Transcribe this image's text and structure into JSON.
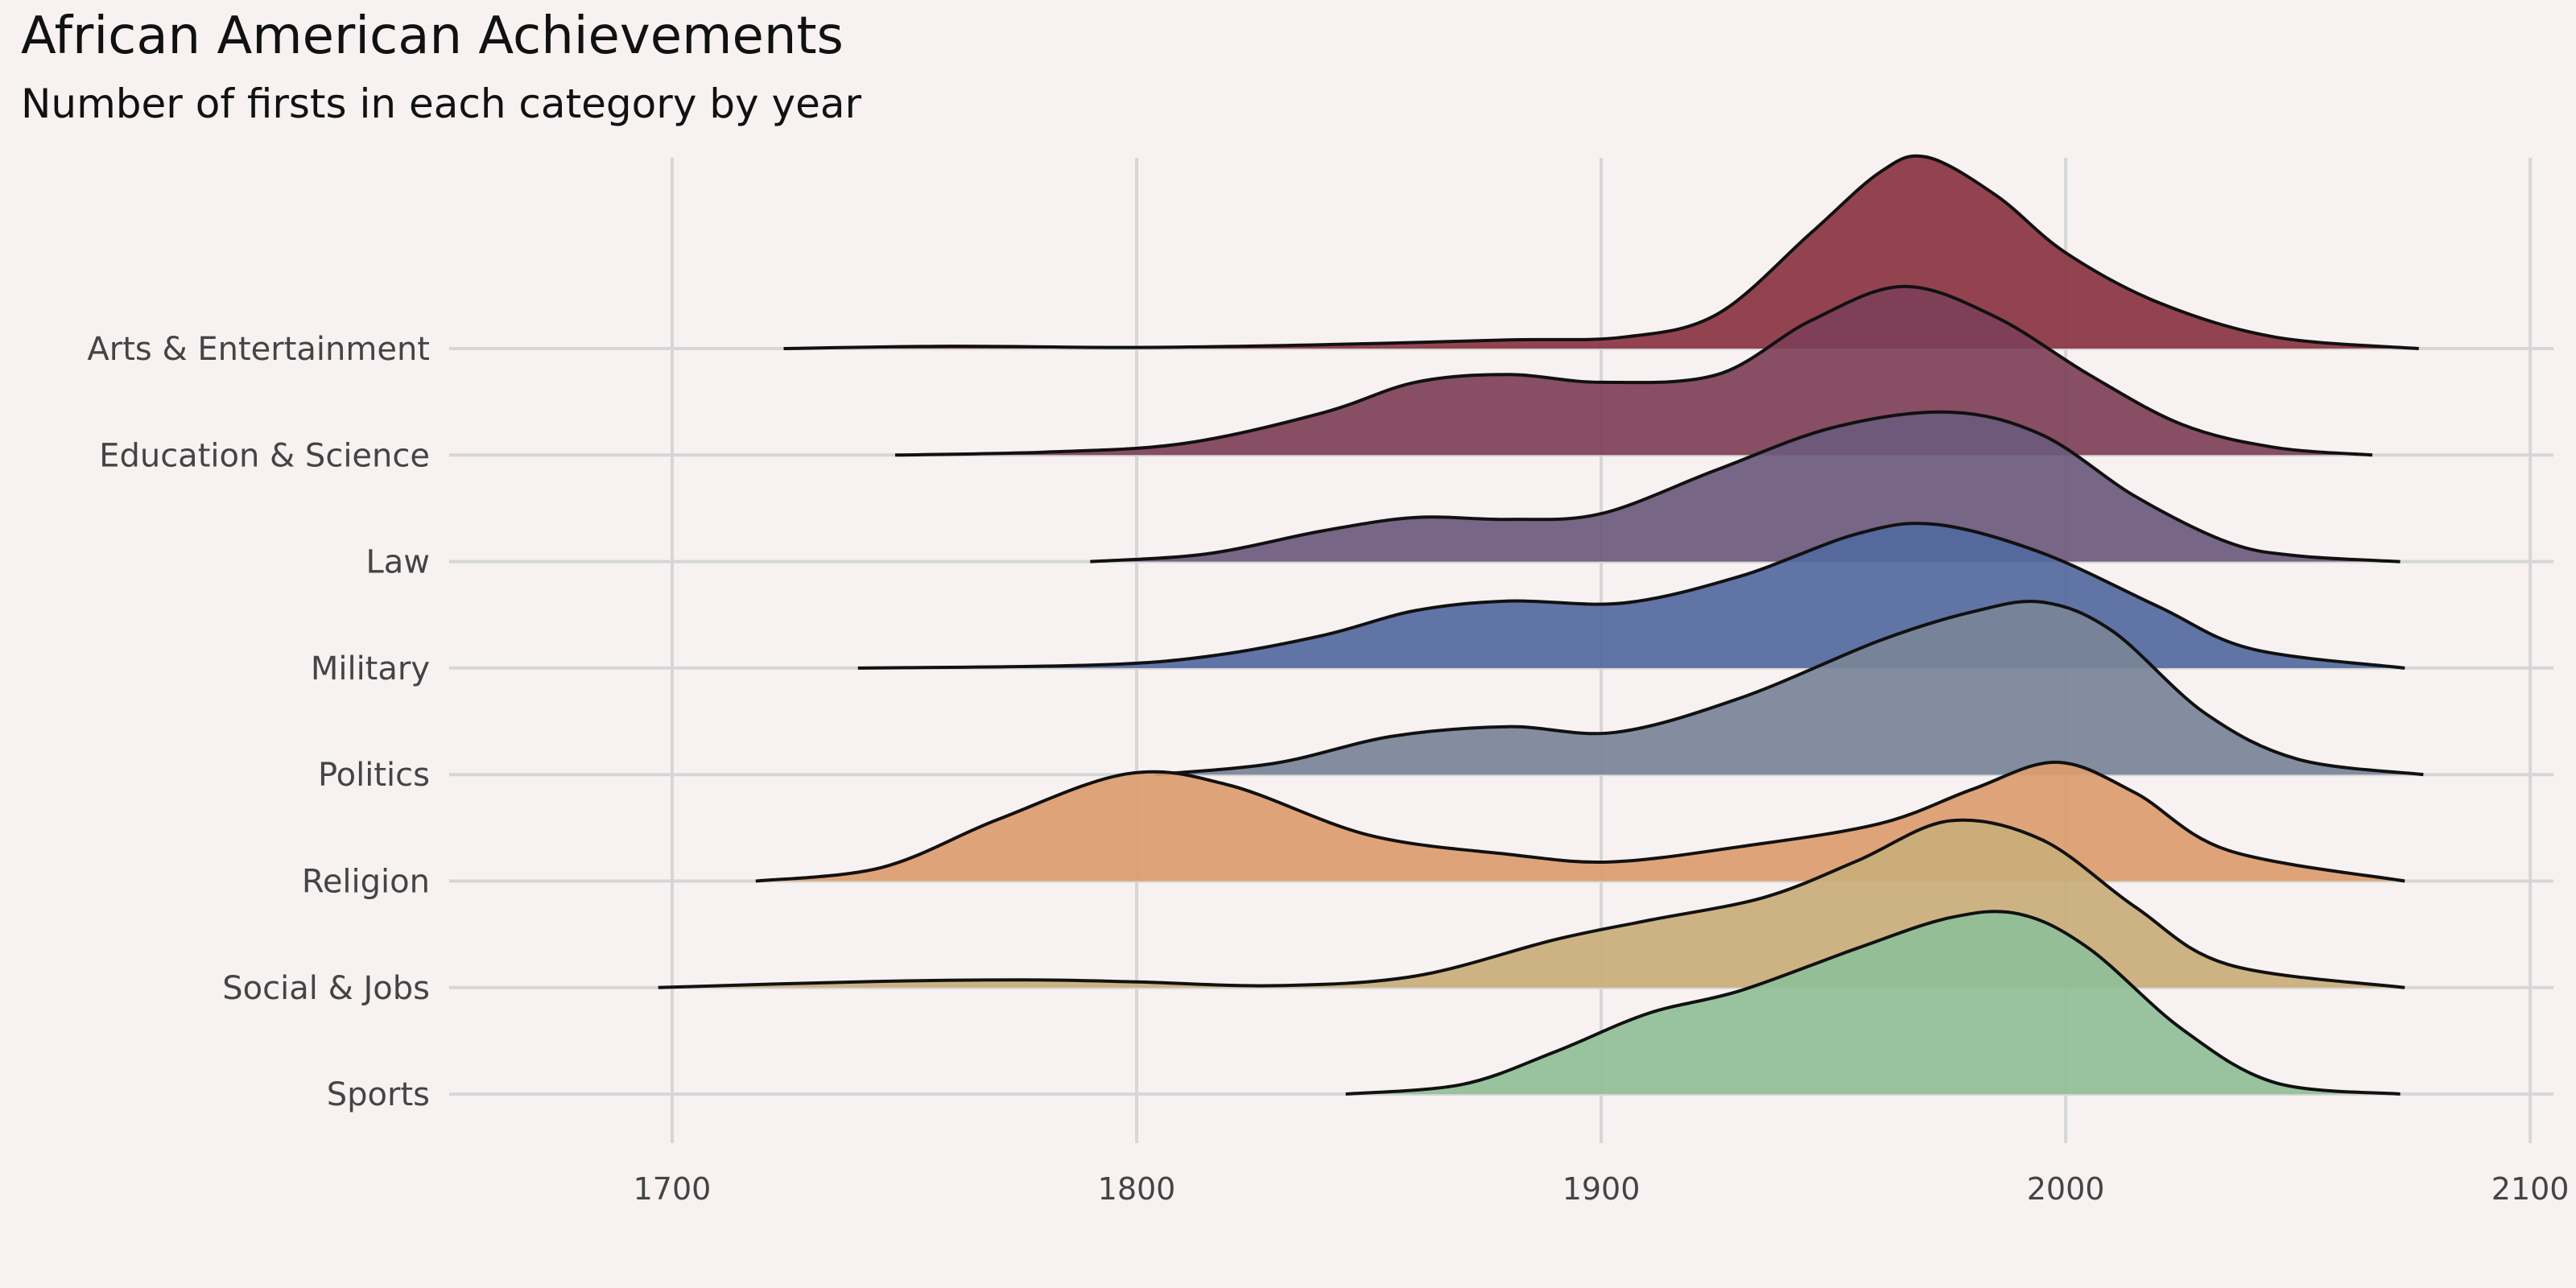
{
  "title": "African American Achievements",
  "subtitle": "Number of firsts in each category by year",
  "chart_data": {
    "type": "ridgeline",
    "title": "African American Achievements",
    "subtitle": "Number of firsts in each category by year",
    "xlabel": "",
    "ylabel": "",
    "xlim": [
      1652,
      2105
    ],
    "xticks": [
      1700,
      1800,
      1900,
      2000,
      2100
    ],
    "grid": true,
    "legend": "none",
    "series": [
      {
        "name": "Arts & Entertainment",
        "color": "#8a3442",
        "min_year": 1724,
        "max_year": 2076,
        "density": [
          [
            1724,
            0.0
          ],
          [
            1760,
            0.012
          ],
          [
            1800,
            0.006
          ],
          [
            1840,
            0.02
          ],
          [
            1880,
            0.045
          ],
          [
            1905,
            0.06
          ],
          [
            1925,
            0.18
          ],
          [
            1945,
            0.6
          ],
          [
            1960,
            0.92
          ],
          [
            1970,
            1.0
          ],
          [
            1985,
            0.8
          ],
          [
            2000,
            0.5
          ],
          [
            2020,
            0.24
          ],
          [
            2045,
            0.06
          ],
          [
            2076,
            0.0
          ]
        ]
      },
      {
        "name": "Education & Science",
        "color": "#7d4058",
        "min_year": 1748,
        "max_year": 2066,
        "density": [
          [
            1748,
            0.0
          ],
          [
            1780,
            0.015
          ],
          [
            1810,
            0.06
          ],
          [
            1840,
            0.22
          ],
          [
            1860,
            0.38
          ],
          [
            1880,
            0.42
          ],
          [
            1900,
            0.38
          ],
          [
            1925,
            0.42
          ],
          [
            1945,
            0.7
          ],
          [
            1965,
            0.88
          ],
          [
            1985,
            0.72
          ],
          [
            2005,
            0.42
          ],
          [
            2025,
            0.16
          ],
          [
            2045,
            0.04
          ],
          [
            2066,
            0.0
          ]
        ]
      },
      {
        "name": "Law",
        "color": "#6b5a7c",
        "min_year": 1790,
        "max_year": 2072,
        "density": [
          [
            1790,
            0.0
          ],
          [
            1815,
            0.04
          ],
          [
            1840,
            0.16
          ],
          [
            1860,
            0.23
          ],
          [
            1880,
            0.22
          ],
          [
            1900,
            0.25
          ],
          [
            1925,
            0.48
          ],
          [
            1950,
            0.7
          ],
          [
            1975,
            0.78
          ],
          [
            1995,
            0.66
          ],
          [
            2015,
            0.34
          ],
          [
            2035,
            0.1
          ],
          [
            2050,
            0.03
          ],
          [
            2072,
            0.0
          ]
        ]
      },
      {
        "name": "Military",
        "color": "#53699e",
        "min_year": 1740,
        "max_year": 2073,
        "density": [
          [
            1740,
            0.0
          ],
          [
            1790,
            0.015
          ],
          [
            1815,
            0.06
          ],
          [
            1840,
            0.17
          ],
          [
            1860,
            0.3
          ],
          [
            1880,
            0.35
          ],
          [
            1905,
            0.34
          ],
          [
            1930,
            0.48
          ],
          [
            1955,
            0.7
          ],
          [
            1972,
            0.75
          ],
          [
            1995,
            0.6
          ],
          [
            2020,
            0.32
          ],
          [
            2040,
            0.1
          ],
          [
            2073,
            0.0
          ]
        ]
      },
      {
        "name": "Politics",
        "color": "#788498",
        "min_year": 1804,
        "max_year": 2077,
        "density": [
          [
            1804,
            0.0
          ],
          [
            1830,
            0.06
          ],
          [
            1855,
            0.2
          ],
          [
            1880,
            0.25
          ],
          [
            1903,
            0.22
          ],
          [
            1930,
            0.4
          ],
          [
            1960,
            0.7
          ],
          [
            1980,
            0.85
          ],
          [
            1995,
            0.9
          ],
          [
            2010,
            0.75
          ],
          [
            2030,
            0.32
          ],
          [
            2050,
            0.08
          ],
          [
            2077,
            0.0
          ]
        ]
      },
      {
        "name": "Religion",
        "color": "#dc9c6f",
        "min_year": 1718,
        "max_year": 2073,
        "density": [
          [
            1718,
            0.0
          ],
          [
            1745,
            0.07
          ],
          [
            1770,
            0.32
          ],
          [
            1798,
            0.56
          ],
          [
            1820,
            0.5
          ],
          [
            1850,
            0.24
          ],
          [
            1880,
            0.14
          ],
          [
            1902,
            0.1
          ],
          [
            1930,
            0.18
          ],
          [
            1960,
            0.3
          ],
          [
            1980,
            0.48
          ],
          [
            1998,
            0.62
          ],
          [
            2015,
            0.46
          ],
          [
            2035,
            0.16
          ],
          [
            2073,
            0.0
          ]
        ]
      },
      {
        "name": "Social & Jobs",
        "color": "#c9ae7a",
        "min_year": 1697,
        "max_year": 2073,
        "density": [
          [
            1697,
            0.0
          ],
          [
            1740,
            0.03
          ],
          [
            1775,
            0.04
          ],
          [
            1800,
            0.03
          ],
          [
            1830,
            0.01
          ],
          [
            1860,
            0.06
          ],
          [
            1890,
            0.25
          ],
          [
            1910,
            0.35
          ],
          [
            1935,
            0.47
          ],
          [
            1955,
            0.66
          ],
          [
            1975,
            0.87
          ],
          [
            1995,
            0.77
          ],
          [
            2015,
            0.42
          ],
          [
            2035,
            0.12
          ],
          [
            2073,
            0.0
          ]
        ]
      },
      {
        "name": "Sports",
        "color": "#8fbf97",
        "min_year": 1845,
        "max_year": 2072,
        "density": [
          [
            1845,
            0.0
          ],
          [
            1870,
            0.05
          ],
          [
            1890,
            0.22
          ],
          [
            1910,
            0.42
          ],
          [
            1930,
            0.54
          ],
          [
            1955,
            0.76
          ],
          [
            1975,
            0.92
          ],
          [
            1990,
            0.94
          ],
          [
            2005,
            0.76
          ],
          [
            2025,
            0.34
          ],
          [
            2045,
            0.06
          ],
          [
            2072,
            0.0
          ]
        ]
      }
    ]
  }
}
